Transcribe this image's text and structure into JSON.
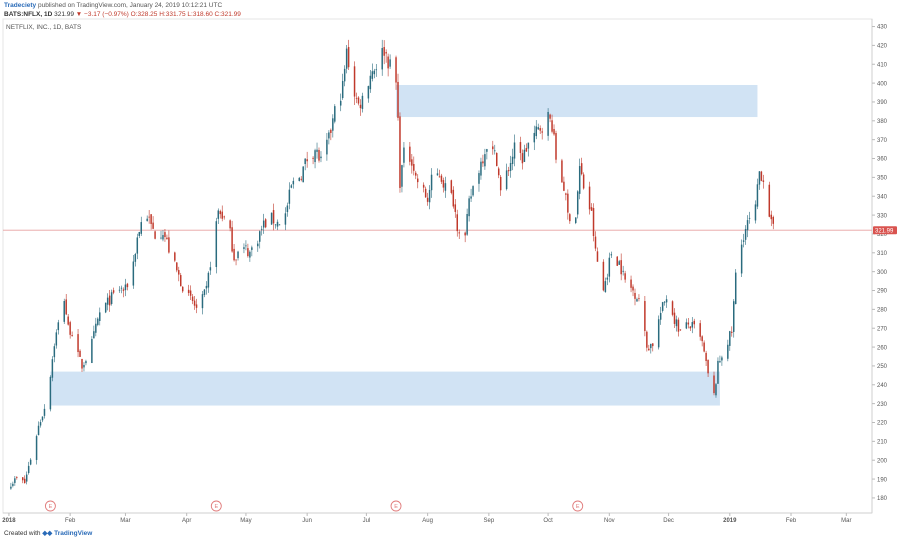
{
  "header": {
    "publisher": "Tradeciety",
    "published_text": " published on TradingView.com, January 24, 2019 10:12:21 UTC",
    "symbol": "BATS:NFLX, 1D",
    "last": "321.99",
    "change": "▼ −3.17 (−0.97%)",
    "ohlc": "O:328.25 H:331.75 L:318.60 C:321.99"
  },
  "footer": {
    "created_with": "Created with",
    "brand": "TradingView"
  },
  "colors": {
    "up": "#2a6b7e",
    "down": "#c0392b",
    "zone": "#cfe2f3",
    "price_line": "#e8a0a0",
    "price_badge": "#d9534f",
    "earnings": "#e07a7a"
  },
  "chart_data": {
    "type": "candlestick",
    "title": "NETFLIX, INC., 1D, BATS",
    "xlabel": "",
    "ylabel": "",
    "ylim": [
      172,
      434
    ],
    "yticks": [
      180,
      190,
      200,
      210,
      220,
      230,
      240,
      250,
      260,
      270,
      280,
      290,
      300,
      310,
      320,
      330,
      340,
      350,
      360,
      370,
      380,
      390,
      400,
      410,
      420,
      430
    ],
    "xlim": [
      "2017-12-29",
      "2019-03-14"
    ],
    "xticks": [
      {
        "label": "2018",
        "date": "2018-01-01"
      },
      {
        "label": "Feb",
        "date": "2018-02-01"
      },
      {
        "label": "Mar",
        "date": "2018-03-01"
      },
      {
        "label": "Apr",
        "date": "2018-04-01"
      },
      {
        "label": "May",
        "date": "2018-05-01"
      },
      {
        "label": "Jun",
        "date": "2018-06-01"
      },
      {
        "label": "Jul",
        "date": "2018-07-01"
      },
      {
        "label": "Aug",
        "date": "2018-08-01"
      },
      {
        "label": "Sep",
        "date": "2018-09-01"
      },
      {
        "label": "Oct",
        "date": "2018-10-01"
      },
      {
        "label": "Nov",
        "date": "2018-11-01"
      },
      {
        "label": "Dec",
        "date": "2018-12-01"
      },
      {
        "label": "2019",
        "date": "2019-01-01"
      },
      {
        "label": "Feb",
        "date": "2019-02-01"
      },
      {
        "label": "Mar",
        "date": "2019-03-01"
      }
    ],
    "last_price": 321.99,
    "last_price_label": "321.99",
    "earnings_label": "E",
    "earnings_dates": [
      "2018-01-22",
      "2018-04-16",
      "2018-07-16",
      "2018-10-16"
    ],
    "zones": [
      {
        "start": "2018-07-16",
        "end": "2019-01-15",
        "low": 382,
        "high": 399
      },
      {
        "start": "2018-01-22",
        "end": "2018-12-27",
        "low": 229,
        "high": 247
      }
    ],
    "path": [
      [
        "2018-01-02",
        188
      ],
      [
        "2018-01-05",
        190
      ],
      [
        "2018-01-09",
        188
      ],
      [
        "2018-01-12",
        201
      ],
      [
        "2018-01-16",
        218
      ],
      [
        "2018-01-19",
        228
      ],
      [
        "2018-01-22",
        246
      ],
      [
        "2018-01-24",
        262
      ],
      [
        "2018-01-26",
        272
      ],
      [
        "2018-01-29",
        286
      ],
      [
        "2018-01-31",
        270
      ],
      [
        "2018-02-02",
        268
      ],
      [
        "2018-02-05",
        255
      ],
      [
        "2018-02-07",
        250
      ],
      [
        "2018-02-09",
        254
      ],
      [
        "2018-02-12",
        262
      ],
      [
        "2018-02-14",
        270
      ],
      [
        "2018-02-16",
        278
      ],
      [
        "2018-02-21",
        285
      ],
      [
        "2018-02-26",
        291
      ],
      [
        "2018-03-01",
        290
      ],
      [
        "2018-03-05",
        305
      ],
      [
        "2018-03-07",
        318
      ],
      [
        "2018-03-09",
        326
      ],
      [
        "2018-03-12",
        330
      ],
      [
        "2018-03-14",
        324
      ],
      [
        "2018-03-16",
        320
      ],
      [
        "2018-03-20",
        322
      ],
      [
        "2018-03-23",
        312
      ],
      [
        "2018-03-27",
        300
      ],
      [
        "2018-03-29",
        295
      ],
      [
        "2018-04-02",
        286
      ],
      [
        "2018-04-04",
        284
      ],
      [
        "2018-04-06",
        280
      ],
      [
        "2018-04-09",
        285
      ],
      [
        "2018-04-11",
        290
      ],
      [
        "2018-04-13",
        305
      ],
      [
        "2018-04-17",
        332
      ],
      [
        "2018-04-19",
        330
      ],
      [
        "2018-04-23",
        320
      ],
      [
        "2018-04-25",
        308
      ],
      [
        "2018-04-27",
        310
      ],
      [
        "2018-05-01",
        312
      ],
      [
        "2018-05-03",
        310
      ],
      [
        "2018-05-07",
        318
      ],
      [
        "2018-05-10",
        325
      ],
      [
        "2018-05-14",
        328
      ],
      [
        "2018-05-17",
        326
      ],
      [
        "2018-05-21",
        330
      ],
      [
        "2018-05-24",
        345
      ],
      [
        "2018-05-29",
        352
      ],
      [
        "2018-06-01",
        360
      ],
      [
        "2018-06-05",
        365
      ],
      [
        "2018-06-08",
        358
      ],
      [
        "2018-06-12",
        370
      ],
      [
        "2018-06-15",
        385
      ],
      [
        "2018-06-19",
        398
      ],
      [
        "2018-06-21",
        416
      ],
      [
        "2018-06-25",
        395
      ],
      [
        "2018-06-27",
        388
      ],
      [
        "2018-06-29",
        392
      ],
      [
        "2018-07-03",
        405
      ],
      [
        "2018-07-06",
        410
      ],
      [
        "2018-07-10",
        418
      ],
      [
        "2018-07-12",
        412
      ],
      [
        "2018-07-16",
        400
      ],
      [
        "2018-07-17",
        380
      ],
      [
        "2018-07-18",
        348
      ],
      [
        "2018-07-20",
        362
      ],
      [
        "2018-07-24",
        360
      ],
      [
        "2018-07-26",
        350
      ],
      [
        "2018-07-30",
        342
      ],
      [
        "2018-08-01",
        338
      ],
      [
        "2018-08-03",
        348
      ],
      [
        "2018-08-07",
        352
      ],
      [
        "2018-08-10",
        345
      ],
      [
        "2018-08-14",
        338
      ],
      [
        "2018-08-16",
        325
      ],
      [
        "2018-08-20",
        318
      ],
      [
        "2018-08-22",
        336
      ],
      [
        "2018-08-24",
        345
      ],
      [
        "2018-08-28",
        358
      ],
      [
        "2018-08-31",
        368
      ],
      [
        "2018-09-05",
        360
      ],
      [
        "2018-09-07",
        342
      ],
      [
        "2018-09-11",
        355
      ],
      [
        "2018-09-14",
        365
      ],
      [
        "2018-09-18",
        360
      ],
      [
        "2018-09-21",
        368
      ],
      [
        "2018-09-26",
        375
      ],
      [
        "2018-10-01",
        382
      ],
      [
        "2018-10-03",
        378
      ],
      [
        "2018-10-05",
        360
      ],
      [
        "2018-10-09",
        345
      ],
      [
        "2018-10-11",
        330
      ],
      [
        "2018-10-15",
        330
      ],
      [
        "2018-10-17",
        355
      ],
      [
        "2018-10-19",
        345
      ],
      [
        "2018-10-23",
        330
      ],
      [
        "2018-10-25",
        310
      ],
      [
        "2018-10-29",
        290
      ],
      [
        "2018-10-31",
        300
      ],
      [
        "2018-11-02",
        310
      ],
      [
        "2018-11-06",
        305
      ],
      [
        "2018-11-09",
        295
      ],
      [
        "2018-11-13",
        290
      ],
      [
        "2018-11-16",
        286
      ],
      [
        "2018-11-20",
        260
      ],
      [
        "2018-11-23",
        262
      ],
      [
        "2018-11-27",
        278
      ],
      [
        "2018-11-30",
        287
      ],
      [
        "2018-12-04",
        275
      ],
      [
        "2018-12-07",
        268
      ],
      [
        "2018-12-11",
        272
      ],
      [
        "2018-12-14",
        270
      ],
      [
        "2018-12-18",
        262
      ],
      [
        "2018-12-21",
        245
      ],
      [
        "2018-12-24",
        234
      ],
      [
        "2018-12-26",
        250
      ],
      [
        "2018-12-28",
        256
      ],
      [
        "2019-01-02",
        268
      ],
      [
        "2019-01-04",
        298
      ],
      [
        "2019-01-08",
        320
      ],
      [
        "2019-01-10",
        325
      ],
      [
        "2019-01-14",
        333
      ],
      [
        "2019-01-16",
        353
      ],
      [
        "2019-01-18",
        350
      ],
      [
        "2019-01-22",
        325
      ],
      [
        "2019-01-23",
        322
      ]
    ]
  }
}
